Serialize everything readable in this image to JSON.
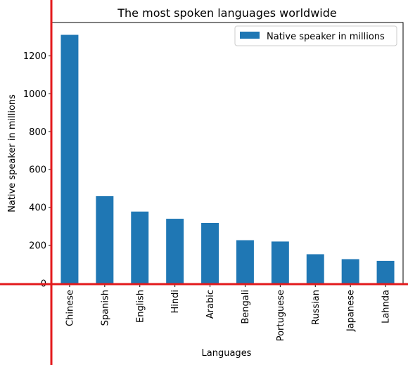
{
  "chart_data": {
    "type": "bar",
    "title": "The most spoken languages worldwide",
    "xlabel": "Languages",
    "ylabel": "Native speaker in millions",
    "categories": [
      "Chinese",
      "Spanish",
      "English",
      "Hindi",
      "Arabic",
      "Bengali",
      "Portuguese",
      "Russian",
      "Japanese",
      "Lahnda"
    ],
    "series": [
      {
        "name": "Native speaker in millions",
        "values": [
          1311,
          460,
          379,
          341,
          319,
          228,
          221,
          154,
          128,
          119
        ],
        "color": "#1f77b4"
      }
    ],
    "ylim": [
      0,
      1376
    ],
    "yticks": [
      0,
      200,
      400,
      600,
      800,
      1000,
      1200
    ],
    "grid": false,
    "legend_position": "top-right",
    "overlay_line_color": "#e31a1c"
  }
}
